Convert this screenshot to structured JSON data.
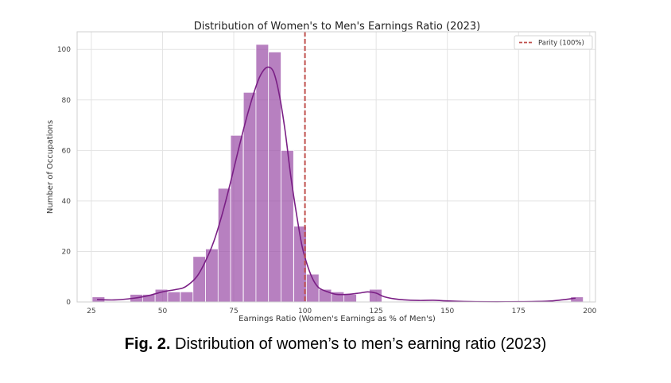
{
  "chart_data": {
    "type": "bar",
    "title": "Distribution of Women's to Men's Earnings Ratio (2023)",
    "xlabel": "Earnings Ratio (Women's Earnings as % of Men's)",
    "ylabel": "Number of Occupations",
    "xlim": [
      20,
      202
    ],
    "ylim": [
      0,
      107
    ],
    "xticks": [
      25,
      50,
      75,
      100,
      125,
      150,
      175,
      200
    ],
    "yticks": [
      0,
      20,
      40,
      60,
      80,
      100
    ],
    "grid": true,
    "bin_width": 4.42,
    "bins": [
      {
        "x": 27.5,
        "count": 2
      },
      {
        "x": 40.8,
        "count": 3
      },
      {
        "x": 45.2,
        "count": 3
      },
      {
        "x": 49.6,
        "count": 5
      },
      {
        "x": 54.0,
        "count": 4
      },
      {
        "x": 58.5,
        "count": 4
      },
      {
        "x": 62.9,
        "count": 18
      },
      {
        "x": 67.3,
        "count": 21
      },
      {
        "x": 71.7,
        "count": 45
      },
      {
        "x": 76.1,
        "count": 66
      },
      {
        "x": 80.6,
        "count": 83
      },
      {
        "x": 85.0,
        "count": 102
      },
      {
        "x": 89.4,
        "count": 99
      },
      {
        "x": 93.8,
        "count": 60
      },
      {
        "x": 98.3,
        "count": 30
      },
      {
        "x": 102.7,
        "count": 11
      },
      {
        "x": 107.1,
        "count": 5
      },
      {
        "x": 111.5,
        "count": 4
      },
      {
        "x": 115.9,
        "count": 3
      },
      {
        "x": 124.8,
        "count": 5
      },
      {
        "x": 195.5,
        "count": 2
      }
    ],
    "kde": [
      [
        27,
        1
      ],
      [
        33,
        0.8
      ],
      [
        40,
        1.5
      ],
      [
        45,
        2.5
      ],
      [
        50,
        4
      ],
      [
        55,
        5
      ],
      [
        58,
        6
      ],
      [
        62,
        10
      ],
      [
        65,
        16
      ],
      [
        68,
        24
      ],
      [
        71,
        35
      ],
      [
        74,
        48
      ],
      [
        77,
        62
      ],
      [
        80,
        75
      ],
      [
        83,
        86
      ],
      [
        85,
        91
      ],
      [
        87,
        93
      ],
      [
        89,
        91
      ],
      [
        91,
        82
      ],
      [
        93,
        68
      ],
      [
        95,
        50
      ],
      [
        97,
        35
      ],
      [
        99,
        22
      ],
      [
        101,
        14
      ],
      [
        103,
        8.5
      ],
      [
        105,
        5.5
      ],
      [
        108,
        4
      ],
      [
        111,
        3
      ],
      [
        115,
        3
      ],
      [
        119,
        3.5
      ],
      [
        122,
        4
      ],
      [
        125,
        3.5
      ],
      [
        128,
        2
      ],
      [
        133,
        1
      ],
      [
        140,
        0.6
      ],
      [
        145,
        0.7
      ],
      [
        150,
        0.4
      ],
      [
        160,
        0.1
      ],
      [
        175,
        0.1
      ],
      [
        185,
        0.3
      ],
      [
        190,
        0.8
      ],
      [
        195,
        1.5
      ]
    ],
    "reference_line": {
      "x": 100,
      "label": "Parity (100%)",
      "color": "#c0504d"
    },
    "bar_color": "#9b4fa8",
    "line_color": "#7a1f85",
    "legend_position": "top-right"
  },
  "caption": {
    "prefix": "Fig. 2.",
    "text": " Distribution of women’s to men’s earning ratio (2023)"
  }
}
